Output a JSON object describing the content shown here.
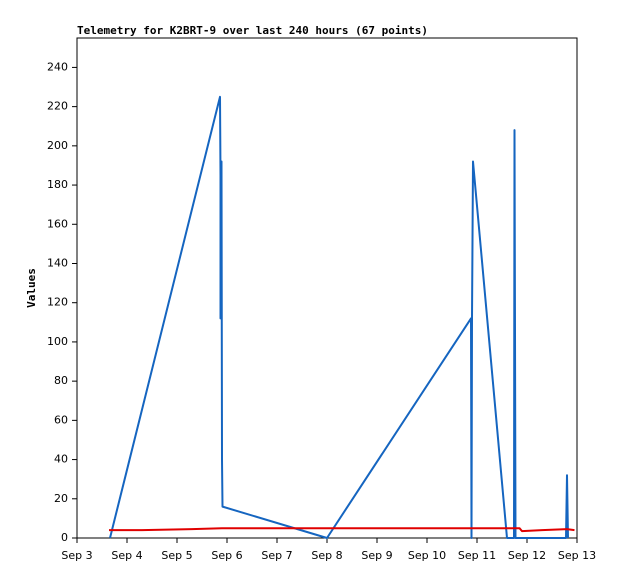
{
  "chart_data": {
    "type": "line",
    "title": "Telemetry for K2BRT-9 over last 240 hours (67 points)",
    "ylabel": "Values",
    "series": [
      {
        "color": "#1565c0",
        "x": [
          3.66,
          5.86,
          5.87,
          5.87,
          5.89,
          5.9,
          5.91,
          8.0,
          10.88,
          10.89,
          10.9,
          10.92,
          11.6,
          11.74,
          11.75,
          11.77,
          12.78,
          12.8,
          12.82
        ],
        "values": [
          0,
          225,
          185,
          112,
          192,
          40,
          16,
          0,
          112,
          0,
          112,
          192,
          0,
          0,
          208,
          0,
          0,
          32,
          0
        ]
      },
      {
        "color": "#e00000",
        "x": [
          3.64,
          4.3,
          5.3,
          5.9,
          8.0,
          10.9,
          11.7,
          11.85,
          11.9,
          12.3,
          12.8,
          12.95
        ],
        "values": [
          4,
          4,
          4.5,
          5,
          5,
          5,
          5,
          5,
          3.5,
          4,
          4.5,
          4
        ]
      }
    ],
    "xlim": [
      3,
      13
    ],
    "xticks": [
      {
        "value": 3,
        "label": "Sep 3"
      },
      {
        "value": 4,
        "label": "Sep 4"
      },
      {
        "value": 5,
        "label": "Sep 5"
      },
      {
        "value": 6,
        "label": "Sep 6"
      },
      {
        "value": 7,
        "label": "Sep 7"
      },
      {
        "value": 8,
        "label": "Sep 8"
      },
      {
        "value": 9,
        "label": "Sep 9"
      },
      {
        "value": 10,
        "label": "Sep 10"
      },
      {
        "value": 11,
        "label": "Sep 11"
      },
      {
        "value": 12,
        "label": "Sep 12"
      },
      {
        "value": 13,
        "label": "Sep 13"
      }
    ],
    "ylim": [
      0,
      255
    ],
    "yticks": [
      0,
      20,
      40,
      60,
      80,
      100,
      120,
      140,
      160,
      180,
      200,
      220,
      240
    ],
    "grid": false
  }
}
